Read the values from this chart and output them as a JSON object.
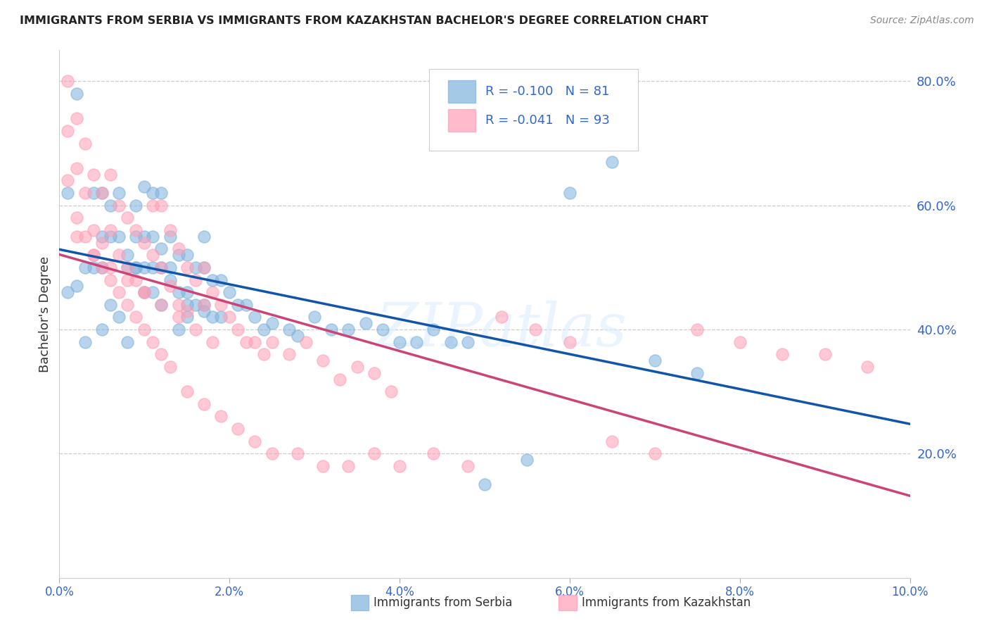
{
  "title": "IMMIGRANTS FROM SERBIA VS IMMIGRANTS FROM KAZAKHSTAN BACHELOR'S DEGREE CORRELATION CHART",
  "source": "Source: ZipAtlas.com",
  "ylabel": "Bachelor's Degree",
  "right_ytick_labels": [
    "80.0%",
    "60.0%",
    "40.0%",
    "20.0%"
  ],
  "right_ytick_values": [
    0.8,
    0.6,
    0.4,
    0.2
  ],
  "xtick_labels": [
    "0.0%",
    "2.0%",
    "4.0%",
    "6.0%",
    "8.0%",
    "10.0%"
  ],
  "xtick_values": [
    0.0,
    0.02,
    0.04,
    0.06,
    0.08,
    0.1
  ],
  "xlim": [
    0.0,
    0.1
  ],
  "ylim": [
    0.0,
    0.85
  ],
  "serbia_color": "#7EB2DD",
  "kazakhstan_color": "#FF9EB5",
  "serbia_line_color": "#1155AA",
  "kazakhstan_line_color": "#CC4477",
  "serbia_R": -0.1,
  "serbia_N": 81,
  "kazakhstan_R": -0.041,
  "kazakhstan_N": 93,
  "legend_label_serbia": "Immigrants from Serbia",
  "legend_label_kazakhstan": "Immigrants from Kazakhstan",
  "legend_text_color": "#3366CC",
  "watermark": "ZIPatlas",
  "serbia_x": [
    0.001,
    0.002,
    0.003,
    0.004,
    0.005,
    0.005,
    0.005,
    0.006,
    0.006,
    0.007,
    0.007,
    0.008,
    0.008,
    0.009,
    0.009,
    0.009,
    0.01,
    0.01,
    0.01,
    0.011,
    0.011,
    0.011,
    0.012,
    0.012,
    0.012,
    0.013,
    0.013,
    0.014,
    0.014,
    0.014,
    0.015,
    0.015,
    0.015,
    0.016,
    0.016,
    0.017,
    0.017,
    0.017,
    0.018,
    0.018,
    0.019,
    0.019,
    0.02,
    0.021,
    0.022,
    0.023,
    0.024,
    0.025,
    0.027,
    0.028,
    0.03,
    0.032,
    0.034,
    0.036,
    0.038,
    0.04,
    0.042,
    0.044,
    0.046,
    0.048,
    0.05,
    0.055,
    0.06,
    0.065,
    0.07,
    0.075,
    0.001,
    0.002,
    0.003,
    0.004,
    0.005,
    0.006,
    0.007,
    0.008,
    0.009,
    0.01,
    0.011,
    0.012,
    0.013,
    0.015,
    0.017
  ],
  "serbia_y": [
    0.62,
    0.78,
    0.5,
    0.62,
    0.62,
    0.55,
    0.5,
    0.6,
    0.55,
    0.62,
    0.55,
    0.52,
    0.5,
    0.6,
    0.55,
    0.5,
    0.55,
    0.5,
    0.46,
    0.55,
    0.5,
    0.46,
    0.53,
    0.5,
    0.44,
    0.55,
    0.48,
    0.52,
    0.46,
    0.4,
    0.52,
    0.46,
    0.42,
    0.5,
    0.44,
    0.55,
    0.5,
    0.44,
    0.48,
    0.42,
    0.48,
    0.42,
    0.46,
    0.44,
    0.44,
    0.42,
    0.4,
    0.41,
    0.4,
    0.39,
    0.42,
    0.4,
    0.4,
    0.41,
    0.4,
    0.38,
    0.38,
    0.4,
    0.38,
    0.38,
    0.15,
    0.19,
    0.62,
    0.67,
    0.35,
    0.33,
    0.46,
    0.47,
    0.38,
    0.5,
    0.4,
    0.44,
    0.42,
    0.38,
    0.5,
    0.63,
    0.62,
    0.62,
    0.5,
    0.44,
    0.43
  ],
  "kazakhstan_x": [
    0.001,
    0.001,
    0.002,
    0.002,
    0.003,
    0.003,
    0.004,
    0.004,
    0.005,
    0.005,
    0.006,
    0.006,
    0.007,
    0.007,
    0.008,
    0.008,
    0.009,
    0.009,
    0.01,
    0.01,
    0.011,
    0.011,
    0.012,
    0.012,
    0.013,
    0.013,
    0.014,
    0.014,
    0.015,
    0.015,
    0.016,
    0.016,
    0.017,
    0.017,
    0.018,
    0.018,
    0.019,
    0.02,
    0.021,
    0.022,
    0.023,
    0.024,
    0.025,
    0.027,
    0.029,
    0.031,
    0.033,
    0.035,
    0.037,
    0.039,
    0.001,
    0.002,
    0.003,
    0.004,
    0.005,
    0.006,
    0.007,
    0.008,
    0.009,
    0.01,
    0.011,
    0.012,
    0.013,
    0.015,
    0.017,
    0.019,
    0.021,
    0.023,
    0.025,
    0.028,
    0.031,
    0.034,
    0.037,
    0.04,
    0.044,
    0.048,
    0.052,
    0.056,
    0.06,
    0.065,
    0.07,
    0.075,
    0.08,
    0.085,
    0.09,
    0.095,
    0.002,
    0.004,
    0.006,
    0.008,
    0.01,
    0.012,
    0.014
  ],
  "kazakhstan_y": [
    0.8,
    0.72,
    0.74,
    0.66,
    0.7,
    0.62,
    0.65,
    0.56,
    0.62,
    0.54,
    0.65,
    0.56,
    0.6,
    0.52,
    0.58,
    0.5,
    0.56,
    0.48,
    0.54,
    0.46,
    0.6,
    0.52,
    0.6,
    0.5,
    0.56,
    0.47,
    0.53,
    0.44,
    0.5,
    0.43,
    0.48,
    0.4,
    0.5,
    0.44,
    0.46,
    0.38,
    0.44,
    0.42,
    0.4,
    0.38,
    0.38,
    0.36,
    0.38,
    0.36,
    0.38,
    0.35,
    0.32,
    0.34,
    0.33,
    0.3,
    0.64,
    0.58,
    0.55,
    0.52,
    0.5,
    0.48,
    0.46,
    0.44,
    0.42,
    0.4,
    0.38,
    0.36,
    0.34,
    0.3,
    0.28,
    0.26,
    0.24,
    0.22,
    0.2,
    0.2,
    0.18,
    0.18,
    0.2,
    0.18,
    0.2,
    0.18,
    0.42,
    0.4,
    0.38,
    0.22,
    0.2,
    0.4,
    0.38,
    0.36,
    0.36,
    0.34,
    0.55,
    0.52,
    0.5,
    0.48,
    0.46,
    0.44,
    0.42
  ]
}
